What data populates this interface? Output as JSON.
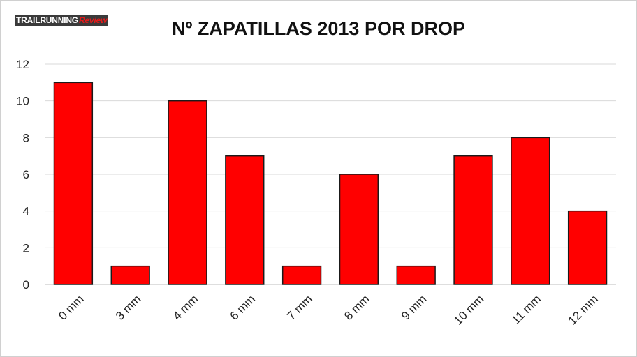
{
  "logo": {
    "part1": "TRAILRUNNING",
    "part2": "Review"
  },
  "chart_data": {
    "type": "bar",
    "title": "Nº ZAPATILLAS 2013 POR DROP",
    "categories": [
      "0 mm",
      "3 mm",
      "4 mm",
      "6 mm",
      "7 mm",
      "8 mm",
      "9 mm",
      "10 mm",
      "11 mm",
      "12 mm"
    ],
    "values": [
      11,
      1,
      10,
      7,
      1,
      6,
      1,
      7,
      8,
      4
    ],
    "yticks": [
      0,
      2,
      4,
      6,
      8,
      10,
      12
    ],
    "ylim": [
      0,
      12
    ],
    "xlabel": "",
    "ylabel": "",
    "grid": true,
    "bar_color": "#ff0000",
    "bar_edge_color": "#1a1a1a"
  }
}
